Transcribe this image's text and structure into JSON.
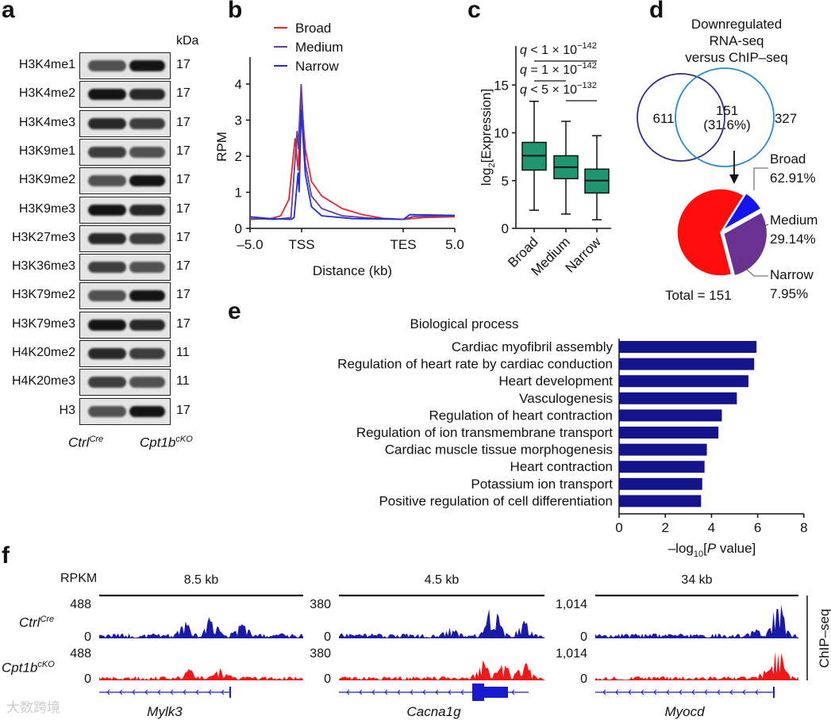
{
  "panel_labels": {
    "a": "a",
    "b": "b",
    "c": "c",
    "d": "d",
    "e": "e",
    "f": "f"
  },
  "panel_a": {
    "unit_label": "kDa",
    "rows": [
      {
        "label": "H3K4me1",
        "kda": "17"
      },
      {
        "label": "H3K4me2",
        "kda": "17"
      },
      {
        "label": "H3K4me3",
        "kda": "17"
      },
      {
        "label": "H3K9me1",
        "kda": "17"
      },
      {
        "label": "H3K9me2",
        "kda": "17"
      },
      {
        "label": "H3K9me3",
        "kda": "17"
      },
      {
        "label": "H3K27me3",
        "kda": "17"
      },
      {
        "label": "H3K36me3",
        "kda": "17"
      },
      {
        "label": "H3K79me2",
        "kda": "17"
      },
      {
        "label": "H3K79me3",
        "kda": "17"
      },
      {
        "label": "H4K20me2",
        "kda": "11"
      },
      {
        "label": "H4K20me3",
        "kda": "11"
      },
      {
        "label": "H3",
        "kda": "17"
      }
    ],
    "lanes": [
      {
        "base": "Ctrl",
        "sup": "Cre"
      },
      {
        "base": "Cpt1b",
        "sup": "cKO"
      }
    ]
  },
  "chart_data": [
    {
      "id": "b",
      "type": "line",
      "xlabel": "Distance (kb)",
      "ylabel": "RPM",
      "xticks": [
        "–5.0",
        "TSS",
        "TES",
        "5.0"
      ],
      "yticks": [
        0,
        1,
        2,
        3,
        4
      ],
      "ylim": [
        0,
        4.6
      ],
      "legend_position": "top-left",
      "series": [
        {
          "name": "Broad",
          "color": "#e8262c",
          "points": [
            [
              0,
              0.25
            ],
            [
              0.1,
              0.27
            ],
            [
              0.15,
              0.35
            ],
            [
              0.19,
              0.8
            ],
            [
              0.22,
              2.5
            ],
            [
              0.235,
              1.6
            ],
            [
              0.25,
              3.6
            ],
            [
              0.27,
              2.2
            ],
            [
              0.3,
              1.3
            ],
            [
              0.35,
              0.9
            ],
            [
              0.45,
              0.55
            ],
            [
              0.55,
              0.38
            ],
            [
              0.65,
              0.28
            ],
            [
              0.75,
              0.25
            ],
            [
              0.85,
              0.3
            ],
            [
              1,
              0.32
            ]
          ]
        },
        {
          "name": "Medium",
          "color": "#6a3d9a",
          "points": [
            [
              0,
              0.27
            ],
            [
              0.12,
              0.25
            ],
            [
              0.2,
              0.3
            ],
            [
              0.23,
              2.7
            ],
            [
              0.235,
              2.2
            ],
            [
              0.25,
              4.0
            ],
            [
              0.27,
              1.8
            ],
            [
              0.3,
              0.9
            ],
            [
              0.35,
              0.55
            ],
            [
              0.45,
              0.35
            ],
            [
              0.6,
              0.28
            ],
            [
              0.75,
              0.25
            ],
            [
              0.8,
              0.33
            ],
            [
              1,
              0.34
            ]
          ]
        },
        {
          "name": "Narrow",
          "color": "#1f2fd6",
          "points": [
            [
              0,
              0.32
            ],
            [
              0.1,
              0.27
            ],
            [
              0.2,
              0.25
            ],
            [
              0.215,
              0.3
            ],
            [
              0.235,
              1.55
            ],
            [
              0.24,
              1.0
            ],
            [
              0.25,
              3.3
            ],
            [
              0.27,
              1.5
            ],
            [
              0.3,
              0.6
            ],
            [
              0.35,
              0.35
            ],
            [
              0.5,
              0.27
            ],
            [
              0.75,
              0.25
            ],
            [
              0.78,
              0.38
            ],
            [
              0.9,
              0.37
            ],
            [
              1,
              0.36
            ]
          ]
        }
      ]
    },
    {
      "id": "c",
      "type": "box",
      "ylabel_base": "log",
      "ylabel_sub": "2",
      "ylabel_rest": "[Expression]",
      "ylim": [
        0,
        19
      ],
      "yticks": [
        0,
        5,
        10,
        15
      ],
      "color": "#1f9670",
      "categories": [
        "Broad",
        "Medium",
        "Narrow"
      ],
      "boxes": [
        {
          "min": 1.9,
          "q1": 6.1,
          "median": 7.6,
          "q3": 9.0,
          "max": 13.3
        },
        {
          "min": 1.5,
          "q1": 5.2,
          "median": 6.4,
          "q3": 7.6,
          "max": 11.2
        },
        {
          "min": 0.9,
          "q1": 3.7,
          "median": 5.0,
          "q3": 6.2,
          "max": 9.7
        }
      ],
      "annotations": [
        {
          "text": "q < 1 × 10",
          "exp": "−142",
          "from": "Broad",
          "to": "Narrow"
        },
        {
          "text": "q = 1 × 10",
          "exp": "−142",
          "from": "Broad",
          "to": "Medium"
        },
        {
          "text": "q < 5 × 10",
          "exp": "−132",
          "from": "Medium",
          "to": "Narrow"
        }
      ]
    },
    {
      "id": "d",
      "type": "venn+pie",
      "title_lines": [
        "Downregulated",
        "RNA-seq",
        "versus ChIP–seq"
      ],
      "venn": {
        "left_only": "611",
        "overlap": "151",
        "overlap_pct": "(31.6%)",
        "right_only": "327"
      },
      "pie": [
        {
          "label": "Broad",
          "pct": "62.91%",
          "value": 62.91,
          "color": "#ff0d0d"
        },
        {
          "label": "Medium",
          "pct": "29.14%",
          "value": 29.14,
          "color": "#6a3192"
        },
        {
          "label": "Narrow",
          "pct": "7.95%",
          "value": 7.95,
          "color": "#1414f0"
        }
      ],
      "total": "Total = 151"
    },
    {
      "id": "e",
      "type": "bar",
      "orientation": "horizontal",
      "title": "Biological process",
      "xlabel_pre": "–log",
      "xlabel_sub": "10",
      "xlabel_post": "[P value]",
      "xlim": [
        0,
        8
      ],
      "xticks": [
        0,
        2,
        4,
        6,
        8
      ],
      "color": "#14148c",
      "categories": [
        "Cardiac myofibril assembly",
        "Regulation of heart rate by cardiac conduction",
        "Heart development",
        "Vasculogenesis",
        "Regulation of heart contraction",
        "Regulation of ion transmembrane transport",
        "Cardiac muscle tissue morphogenesis",
        "Heart contraction",
        "Potassium ion transport",
        "Positive regulation of cell differentiation"
      ],
      "values": [
        5.95,
        5.85,
        5.6,
        5.1,
        4.45,
        4.3,
        3.8,
        3.7,
        3.6,
        3.55
      ]
    },
    {
      "id": "f",
      "type": "genome-tracks",
      "unit": "RPKM",
      "side_label": "ChIP–seq",
      "samples": [
        {
          "base": "Ctrl",
          "sup": "Cre",
          "color": "#1a1aa8"
        },
        {
          "base": "Cpt1b",
          "sup": "cKO",
          "color": "#f01818"
        }
      ],
      "loci": [
        {
          "gene": "Mylk3",
          "scale": "8.5 kb",
          "ymax": "488",
          "ymin": "0"
        },
        {
          "gene": "Cacna1g",
          "scale": "4.5 kb",
          "ymax": "380",
          "ymin": "0"
        },
        {
          "gene": "Myocd",
          "scale": "34 kb",
          "ymax": "1,014",
          "ymin": "0"
        }
      ]
    }
  ],
  "watermark": "大数跨境"
}
